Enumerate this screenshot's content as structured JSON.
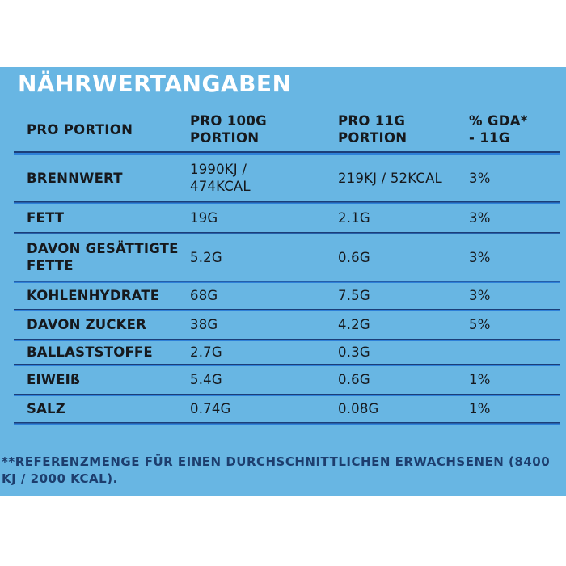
{
  "title": "NÄHRWERTANGABEN",
  "table": {
    "columns": [
      "PRO PORTION",
      "PRO 100G\nPORTION",
      "PRO 11G\nPORTION",
      "% GDA*\n- 11G"
    ],
    "rows": [
      {
        "label": "BRENNWERT",
        "per_100g": "1990KJ /\n474KCAL",
        "per_11g": "219KJ / 52KCAL",
        "gda": "3%"
      },
      {
        "label": "FETT",
        "per_100g": "19G",
        "per_11g": "2.1G",
        "gda": "3%"
      },
      {
        "label": "DAVON GESÄTTIGTE\nFETTE",
        "per_100g": "5.2G",
        "per_11g": "0.6G",
        "gda": "3%"
      },
      {
        "label": "KOHLENHYDRATE",
        "per_100g": "68G",
        "per_11g": "7.5G",
        "gda": "3%"
      },
      {
        "label": "DAVON ZUCKER",
        "per_100g": "38G",
        "per_11g": "4.2G",
        "gda": "5%"
      },
      {
        "label": "BALLASTSTOFFE",
        "per_100g": "2.7G",
        "per_11g": "0.3G",
        "gda": ""
      },
      {
        "label": "EIWEIß",
        "per_100g": "5.4G",
        "per_11g": "0.6G",
        "gda": "1%"
      },
      {
        "label": "SALZ",
        "per_100g": "0.74G",
        "per_11g": "0.08G",
        "gda": "1%"
      }
    ]
  },
  "footnote": "**REFERENZMENGE FÜR EINEN DURCHSCHNITTLICHEN ERWACHSENEN (8400\nKJ / 2000 KCAL).",
  "colors": {
    "panel_background": "#68B6E3",
    "rule_dark": "#1C3E77",
    "rule_bright": "#2E80D8",
    "text": "#16191d",
    "title_text": "#FFFFFF",
    "footnote_text": "#1D3E6E"
  }
}
